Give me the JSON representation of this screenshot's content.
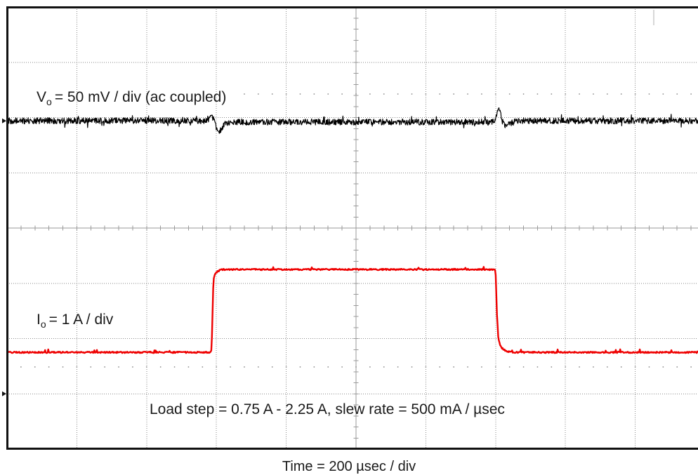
{
  "chart_data": {
    "type": "line",
    "xlabel": "Time = 200 µsec / div",
    "xlim": [
      0,
      2000
    ],
    "grid": true,
    "series": [
      {
        "color": "#000000",
        "ylim": [
          -297,
          103
        ],
        "x": [
          0,
          572,
          580,
          586,
          592,
          598,
          604,
          610,
          616,
          624,
          636,
          660,
          1392,
          1398,
          1403,
          1407,
          1410,
          1414,
          1419,
          1426,
          1438,
          1460,
          2000
        ],
        "y": [
          0,
          0,
          2,
          4,
          1,
          -5,
          -9,
          -9,
          -6,
          -3,
          -1,
          -1,
          -1,
          1,
          5,
          10,
          12,
          7,
          0,
          -4,
          -3,
          0,
          0
        ]
      },
      {
        "color": "#ee0000",
        "ylim": [
          -1,
          7
        ],
        "x": [
          0,
          584,
          586,
          588,
          590,
          592,
          595,
          600,
          608,
          616,
          1398,
          1400,
          1402,
          1404,
          1406,
          1408,
          1412,
          1418,
          1426,
          1438,
          1452,
          2000
        ],
        "y": [
          0.75,
          0.75,
          0.8,
          1.2,
          1.8,
          2.08,
          2.16,
          2.2,
          2.23,
          2.25,
          2.25,
          2.15,
          1.8,
          1.4,
          1.15,
          1.0,
          0.9,
          0.83,
          0.79,
          0.76,
          0.75,
          0.75
        ]
      }
    ],
    "annotations": [
      {
        "symbol": "V",
        "subscript": "o",
        "text": "= 50 mV / div (ac coupled)"
      },
      {
        "symbol": "I",
        "subscript": "o",
        "text": "= 1 A / div"
      },
      {
        "text": "Load step = 0.75 A - 2.25 A, slew rate = 500 mA / µsec"
      }
    ]
  }
}
